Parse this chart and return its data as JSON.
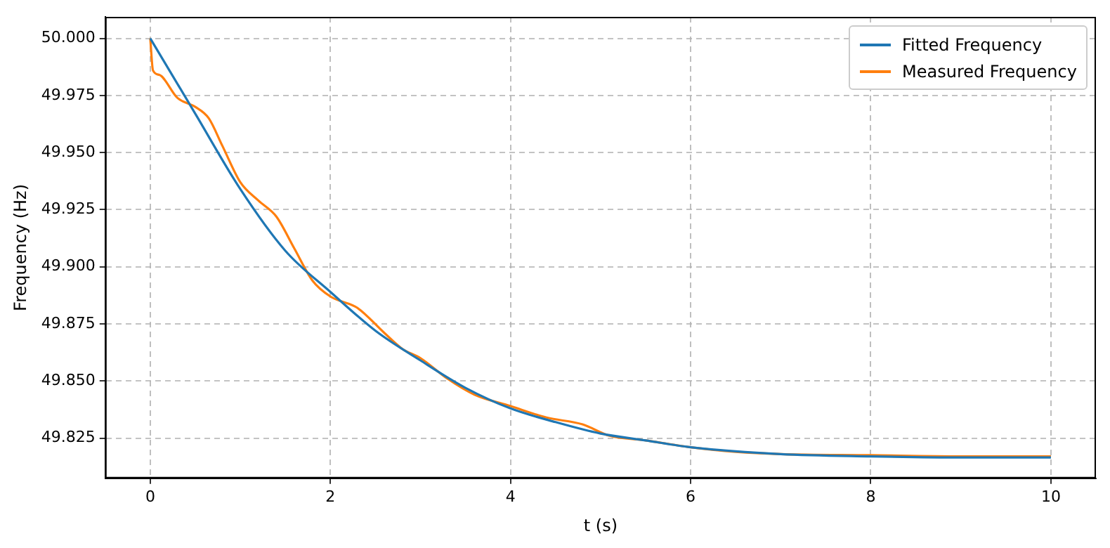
{
  "chart_data": {
    "type": "line",
    "xlabel": "t (s)",
    "ylabel": "Frequency (Hz)",
    "xlim": [
      -0.5,
      10.5
    ],
    "xticks": [
      0,
      2,
      4,
      6,
      8,
      10
    ],
    "ylim": [
      49.8074,
      50.0094
    ],
    "yticks": [
      {
        "value": 49.825,
        "label": "49.825"
      },
      {
        "value": 49.85,
        "label": "49.850"
      },
      {
        "value": 49.875,
        "label": "49.875"
      },
      {
        "value": 49.9,
        "label": "49.900"
      },
      {
        "value": 49.925,
        "label": "49.925"
      },
      {
        "value": 49.95,
        "label": "49.950"
      },
      {
        "value": 49.975,
        "label": "49.975"
      },
      {
        "value": 50,
        "label": "50.000"
      }
    ],
    "grid": true,
    "legend": "top right",
    "line_style": "solid",
    "marker": "none",
    "series": [
      {
        "name": "Fitted Frequency",
        "color": "#1f77b4",
        "x": [
          0,
          0.5,
          1,
          1.5,
          2,
          2.5,
          3,
          3.5,
          4,
          4.5,
          5,
          5.5,
          6,
          7,
          8,
          9,
          10
        ],
        "values": [
          50.0,
          49.967,
          49.934,
          49.907,
          49.889,
          49.872,
          49.859,
          49.847,
          49.838,
          49.832,
          49.827,
          49.824,
          49.821,
          49.818,
          49.817,
          49.8165,
          49.8165
        ]
      },
      {
        "name": "Measured Frequency",
        "color": "#ff7f0e",
        "x": [
          0,
          0.03,
          0.1,
          0.3,
          0.5,
          0.65,
          0.8,
          1.0,
          1.2,
          1.4,
          1.6,
          1.8,
          2.0,
          2.3,
          2.6,
          2.8,
          3.0,
          3.3,
          3.6,
          4.0,
          4.4,
          4.8,
          5.1,
          5.5,
          6,
          6.5,
          7,
          8,
          9,
          10
        ],
        "values": [
          50.0,
          49.986,
          49.984,
          49.974,
          49.97,
          49.965,
          49.953,
          49.937,
          49.929,
          49.922,
          49.908,
          49.894,
          49.887,
          49.882,
          49.871,
          49.864,
          49.86,
          49.851,
          49.844,
          49.839,
          49.834,
          49.831,
          49.826,
          49.824,
          49.821,
          49.819,
          49.818,
          49.8175,
          49.817,
          49.817
        ]
      }
    ]
  }
}
